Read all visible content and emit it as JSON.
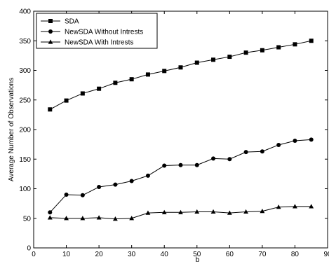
{
  "chart_data": {
    "type": "line",
    "title": "",
    "xlabel": "b",
    "ylabel": "Average Number of Observations",
    "xlim": [
      0,
      90
    ],
    "ylim": [
      0,
      400
    ],
    "xticks": [
      0,
      10,
      20,
      30,
      40,
      50,
      60,
      70,
      80,
      90
    ],
    "yticks": [
      0,
      50,
      100,
      150,
      200,
      250,
      300,
      350,
      400
    ],
    "grid": false,
    "legend_position": "top-left",
    "x": [
      5,
      10,
      15,
      20,
      25,
      30,
      35,
      40,
      45,
      50,
      55,
      60,
      65,
      70,
      75,
      80,
      85
    ],
    "series": [
      {
        "name": "SDA",
        "marker": "square",
        "color": "#000000",
        "values": [
          234,
          249,
          261,
          269,
          279,
          285,
          293,
          299,
          305,
          313,
          318,
          323,
          330,
          334,
          339,
          344,
          350
        ]
      },
      {
        "name": "NewSDA Without Intrests",
        "marker": "circle",
        "color": "#000000",
        "values": [
          60,
          90,
          89,
          103,
          107,
          113,
          122,
          139,
          140,
          140,
          151,
          150,
          162,
          163,
          174,
          181,
          183
        ]
      },
      {
        "name": "NewSDA With Intrests",
        "marker": "triangle",
        "color": "#000000",
        "values": [
          51,
          50,
          50,
          51,
          49,
          50,
          59,
          60,
          60,
          61,
          61,
          59,
          61,
          62,
          69,
          70,
          70
        ]
      }
    ]
  }
}
